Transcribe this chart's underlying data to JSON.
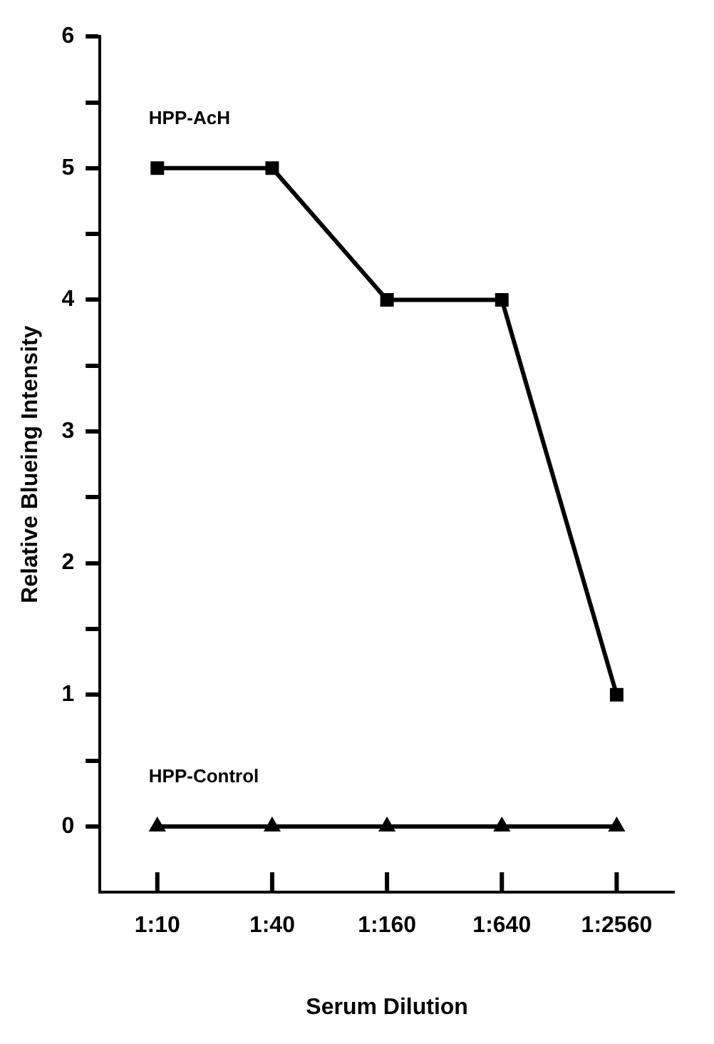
{
  "chart_data": {
    "type": "line",
    "xlabel": "Serum Dilution",
    "ylabel": "Relative Blueing Intensity",
    "categories": [
      "1:10",
      "1:40",
      "1:160",
      "1:640",
      "1:2560"
    ],
    "series": [
      {
        "name": "HPP-AcH",
        "color": "#000000",
        "marker": "square",
        "values": [
          5,
          5,
          4,
          4,
          1
        ]
      },
      {
        "name": "HPP-Control",
        "color": "#000000",
        "marker": "triangle",
        "values": [
          0,
          0,
          0,
          0,
          0
        ]
      }
    ],
    "ylim": [
      -0.5,
      6
    ],
    "yticks": [
      0,
      {
        "value": 0.5,
        "label": null
      },
      1,
      {
        "value": 1.5,
        "label": null
      },
      2,
      {
        "value": 2.5,
        "label": null
      },
      3,
      {
        "value": 3.5,
        "label": null
      },
      4,
      {
        "value": 4.5,
        "label": null
      },
      5,
      {
        "value": 5.5,
        "label": null
      },
      6
    ],
    "grid": false,
    "legend": false,
    "line_style": "solid"
  }
}
